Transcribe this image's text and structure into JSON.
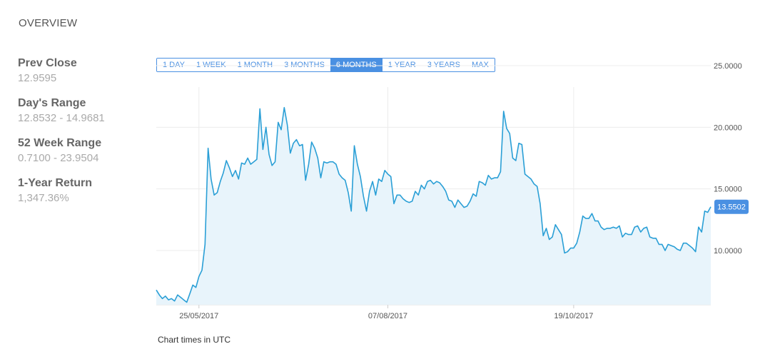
{
  "overview": {
    "title": "OVERVIEW"
  },
  "stats": [
    {
      "label": "Prev Close",
      "value": "12.9595"
    },
    {
      "label": "Day's Range",
      "value": "12.8532 - 14.9681"
    },
    {
      "label": "52 Week Range",
      "value": "0.7100 - 23.9504"
    },
    {
      "label": "1-Year Return",
      "value": "1,347.36%"
    }
  ],
  "range_buttons": [
    {
      "label": "1 DAY",
      "active": false
    },
    {
      "label": "1 WEEK",
      "active": false
    },
    {
      "label": "1 MONTH",
      "active": false
    },
    {
      "label": "3 MONTHS",
      "active": false
    },
    {
      "label": "6 MONTHS",
      "active": true
    },
    {
      "label": "1 YEAR",
      "active": false
    },
    {
      "label": "3 YEARS",
      "active": false
    },
    {
      "label": "MAX",
      "active": false
    }
  ],
  "colors": {
    "accent": "#4a90e2",
    "line": "#2a9fd6",
    "fill": "#e8f4fb"
  },
  "footer": {
    "note": "Chart times in UTC"
  },
  "chart_data": {
    "type": "area",
    "current_value_label": "13.5502",
    "current_value": 13.5502,
    "ylim": [
      5.6,
      25
    ],
    "yticks": [
      10,
      15,
      20,
      25
    ],
    "ytick_labels": [
      "10.0000",
      "15.0000",
      "20.0000",
      "25.0000"
    ],
    "xtick_labels": [
      {
        "label": "25/05/2017",
        "index": 14
      },
      {
        "label": "07/08/2017",
        "index": 76
      },
      {
        "label": "19/10/2017",
        "index": 137
      }
    ],
    "grid": true,
    "series": [
      {
        "values": [
          6.8,
          6.4,
          6.1,
          6.3,
          6.0,
          6.1,
          5.9,
          6.4,
          6.2,
          6.0,
          5.8,
          6.5,
          7.2,
          7.0,
          7.9,
          8.4,
          10.5,
          18.3,
          15.8,
          14.5,
          14.7,
          15.6,
          16.3,
          17.3,
          16.7,
          16.0,
          16.5,
          15.8,
          17.1,
          17.0,
          17.5,
          17.0,
          17.2,
          17.4,
          21.5,
          18.2,
          20.0,
          17.8,
          16.9,
          17.2,
          20.4,
          19.8,
          21.6,
          20.2,
          17.9,
          18.7,
          19.0,
          18.5,
          18.6,
          15.7,
          17.0,
          18.8,
          18.3,
          17.5,
          15.9,
          17.2,
          17.1,
          17.2,
          17.2,
          17.0,
          16.2,
          15.9,
          15.7,
          14.7,
          13.2,
          18.5,
          17.0,
          16.0,
          14.4,
          13.2,
          14.8,
          15.6,
          14.5,
          15.8,
          15.6,
          16.5,
          16.2,
          16.0,
          13.8,
          14.5,
          14.5,
          14.2,
          14.0,
          13.9,
          14.0,
          14.8,
          14.5,
          15.3,
          15.0,
          15.6,
          15.7,
          15.4,
          15.6,
          15.5,
          15.2,
          14.8,
          14.1,
          14.0,
          13.5,
          14.1,
          13.8,
          13.5,
          13.6,
          14.0,
          14.6,
          14.4,
          15.6,
          15.5,
          15.3,
          16.1,
          15.8,
          15.9,
          15.9,
          16.4,
          21.3,
          19.9,
          19.5,
          17.5,
          17.3,
          18.7,
          18.6,
          16.2,
          16.0,
          15.8,
          15.4,
          15.2,
          13.8,
          11.2,
          11.8,
          10.9,
          11.1,
          12.1,
          11.7,
          11.3,
          9.8,
          9.9,
          10.2,
          10.2,
          10.6,
          11.5,
          12.8,
          12.6,
          12.6,
          13.0,
          12.4,
          12.4,
          11.9,
          11.7,
          11.8,
          11.8,
          11.9,
          11.8,
          12.0,
          11.1,
          11.4,
          11.3,
          11.3,
          11.9,
          12.0,
          11.5,
          11.8,
          11.9,
          11.1,
          11.0,
          11.0,
          10.5,
          10.5,
          10.0,
          10.5,
          10.4,
          10.3,
          10.1,
          10.0,
          10.6,
          10.6,
          10.4,
          10.2,
          9.9,
          11.9,
          11.5,
          13.2,
          13.1,
          13.55
        ]
      }
    ]
  }
}
